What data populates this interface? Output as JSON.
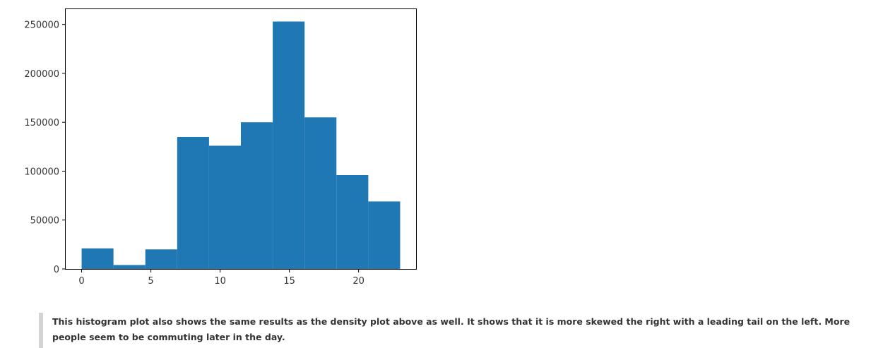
{
  "chart_data": {
    "type": "bar",
    "histogram": true,
    "bin_edges": [
      0,
      2.3,
      4.6,
      6.9,
      9.2,
      11.5,
      13.8,
      16.1,
      18.4,
      20.7,
      23
    ],
    "values": [
      21000,
      4000,
      20000,
      135000,
      126000,
      150000,
      253000,
      155000,
      96000,
      69000
    ],
    "color": "#1f77b4",
    "title": "",
    "xlabel": "",
    "ylabel": "",
    "xlim": [
      -1.15,
      24.15
    ],
    "ylim": [
      0,
      265650
    ],
    "xticks": [
      0,
      5,
      10,
      15,
      20
    ],
    "yticks": [
      0,
      50000,
      100000,
      150000,
      200000,
      250000
    ],
    "grid": false,
    "legend": false
  },
  "note": {
    "text": "This histogram plot also shows the same results as the density plot above as well. It shows that it is more skewed the right with a leading tail on the left. More people seem to be commuting later in the day."
  }
}
